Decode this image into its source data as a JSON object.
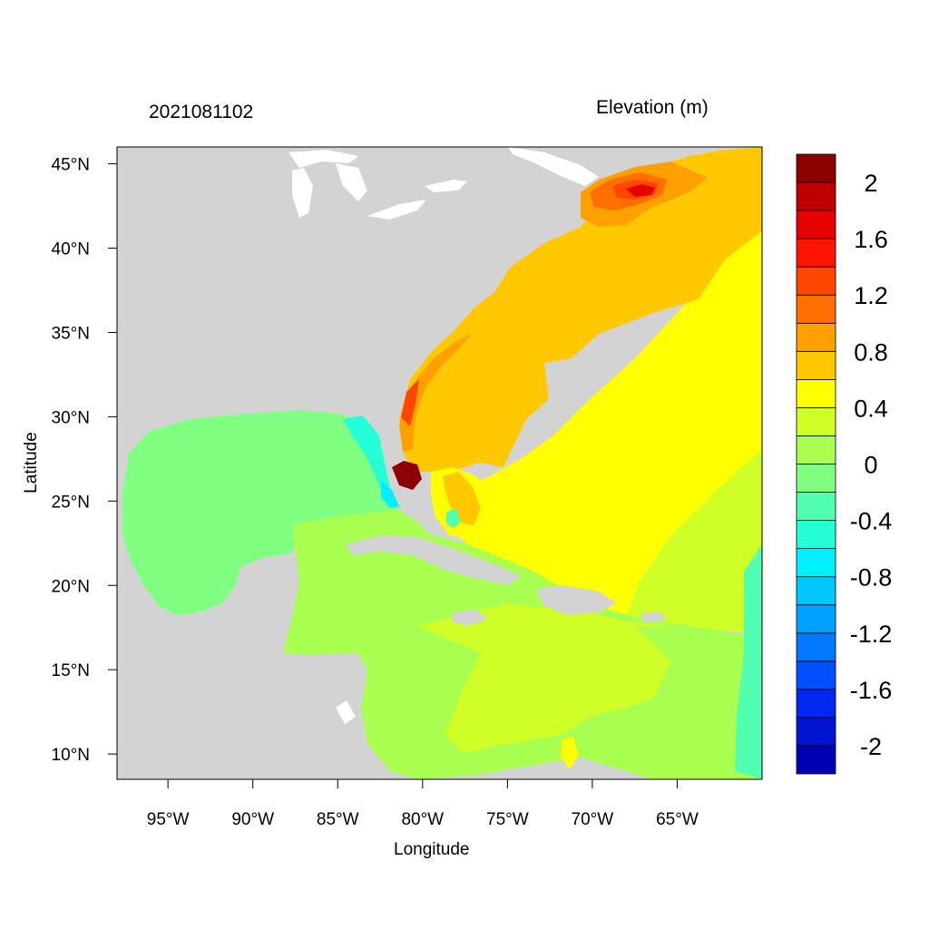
{
  "title_left": "2021081102",
  "title_right": "Elevation (m)",
  "xlabel": "Longitude",
  "ylabel": "Latitude",
  "x_ticks": [
    {
      "value": -95,
      "label": "95°W"
    },
    {
      "value": -90,
      "label": "90°W"
    },
    {
      "value": -85,
      "label": "85°W"
    },
    {
      "value": -80,
      "label": "80°W"
    },
    {
      "value": -75,
      "label": "75°W"
    },
    {
      "value": -70,
      "label": "70°W"
    },
    {
      "value": -65,
      "label": "65°W"
    }
  ],
  "y_ticks": [
    {
      "value": 45,
      "label": "45°N"
    },
    {
      "value": 40,
      "label": "40°N"
    },
    {
      "value": 35,
      "label": "35°N"
    },
    {
      "value": 30,
      "label": "30°N"
    },
    {
      "value": 25,
      "label": "25°N"
    },
    {
      "value": 20,
      "label": "20°N"
    },
    {
      "value": 15,
      "label": "15°N"
    },
    {
      "value": 10,
      "label": "10°N"
    }
  ],
  "extent": {
    "lon": [
      -98,
      -60
    ],
    "lat": [
      8.5,
      46
    ]
  },
  "colorbar": {
    "colors_low_to_high": [
      "#0000b4",
      "#0014d2",
      "#0028f0",
      "#0050ff",
      "#0078ff",
      "#00a0ff",
      "#00c8ff",
      "#00f0ff",
      "#24ffd8",
      "#50ffb0",
      "#80ff80",
      "#a8ff50",
      "#d0ff28",
      "#ffff00",
      "#ffc800",
      "#ffa000",
      "#ff6e00",
      "#ff4600",
      "#ff1400",
      "#e60000",
      "#be0000",
      "#8c0000"
    ],
    "labels_top_to_bottom": [
      "2",
      "1.6",
      "1.2",
      "0.8",
      "0.4",
      "0",
      "-0.4",
      "-0.8",
      "-1.2",
      "-1.6",
      "-2"
    ]
  },
  "colors": {
    "land": "#d3d3d3",
    "inland_water": "#ffffff"
  }
}
